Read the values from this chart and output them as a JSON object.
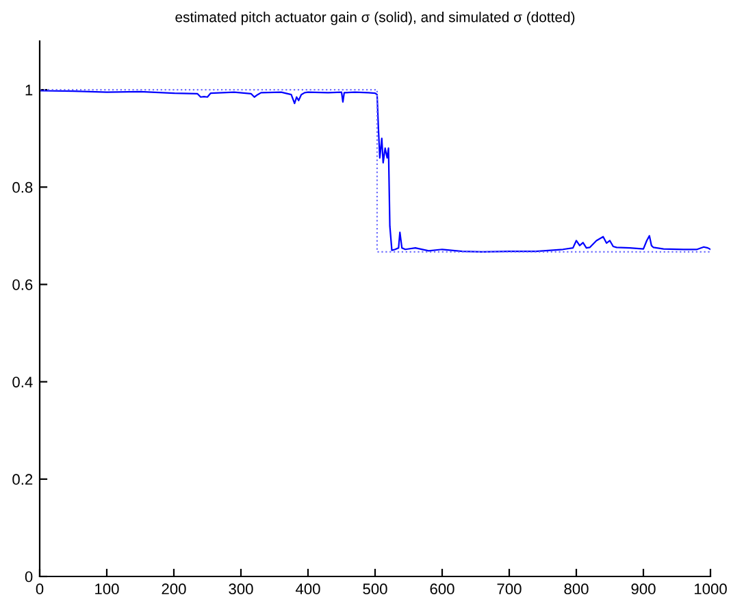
{
  "chart_data": {
    "type": "line",
    "title": "estimated pitch actuator gain σ (solid), and simulated σ (dotted)",
    "xlim": [
      0,
      1000
    ],
    "ylim": [
      0,
      1.1
    ],
    "xticks": [
      0,
      100,
      200,
      300,
      400,
      500,
      600,
      700,
      800,
      900,
      1000
    ],
    "yticks": [
      0,
      0.2,
      0.4,
      0.6,
      0.8,
      1
    ],
    "grid": false,
    "series": [
      {
        "color": "#0000ff",
        "line_style": "solid",
        "x": [
          0,
          50,
          100,
          150,
          200,
          235,
          240,
          245,
          250,
          255,
          290,
          315,
          320,
          325,
          330,
          360,
          375,
          380,
          383,
          386,
          390,
          395,
          400,
          430,
          450,
          452,
          454,
          470,
          490,
          500,
          503,
          505,
          507,
          510,
          512,
          515,
          518,
          520,
          522,
          525,
          530,
          535,
          537,
          540,
          545,
          560,
          580,
          600,
          630,
          660,
          700,
          740,
          780,
          795,
          800,
          805,
          810,
          815,
          820,
          830,
          840,
          845,
          850,
          855,
          860,
          880,
          900,
          905,
          909,
          912,
          915,
          930,
          960,
          980,
          990,
          996,
          1000
        ],
        "values": [
          0.998,
          0.997,
          0.995,
          0.996,
          0.993,
          0.992,
          0.985,
          0.986,
          0.985,
          0.993,
          0.995,
          0.992,
          0.985,
          0.99,
          0.994,
          0.995,
          0.99,
          0.972,
          0.985,
          0.978,
          0.99,
          0.994,
          0.995,
          0.994,
          0.995,
          0.975,
          0.994,
          0.995,
          0.994,
          0.993,
          0.99,
          0.92,
          0.86,
          0.9,
          0.85,
          0.88,
          0.86,
          0.88,
          0.72,
          0.67,
          0.672,
          0.675,
          0.707,
          0.675,
          0.672,
          0.675,
          0.669,
          0.672,
          0.668,
          0.667,
          0.668,
          0.668,
          0.672,
          0.675,
          0.69,
          0.68,
          0.686,
          0.675,
          0.676,
          0.69,
          0.698,
          0.685,
          0.69,
          0.678,
          0.676,
          0.675,
          0.673,
          0.69,
          0.7,
          0.68,
          0.676,
          0.673,
          0.672,
          0.672,
          0.677,
          0.675,
          0.672
        ]
      },
      {
        "color": "#6f6fff",
        "line_style": "dotted",
        "x": [
          0,
          503,
          503,
          1000
        ],
        "values": [
          1,
          1,
          0.667,
          0.667
        ]
      }
    ]
  }
}
